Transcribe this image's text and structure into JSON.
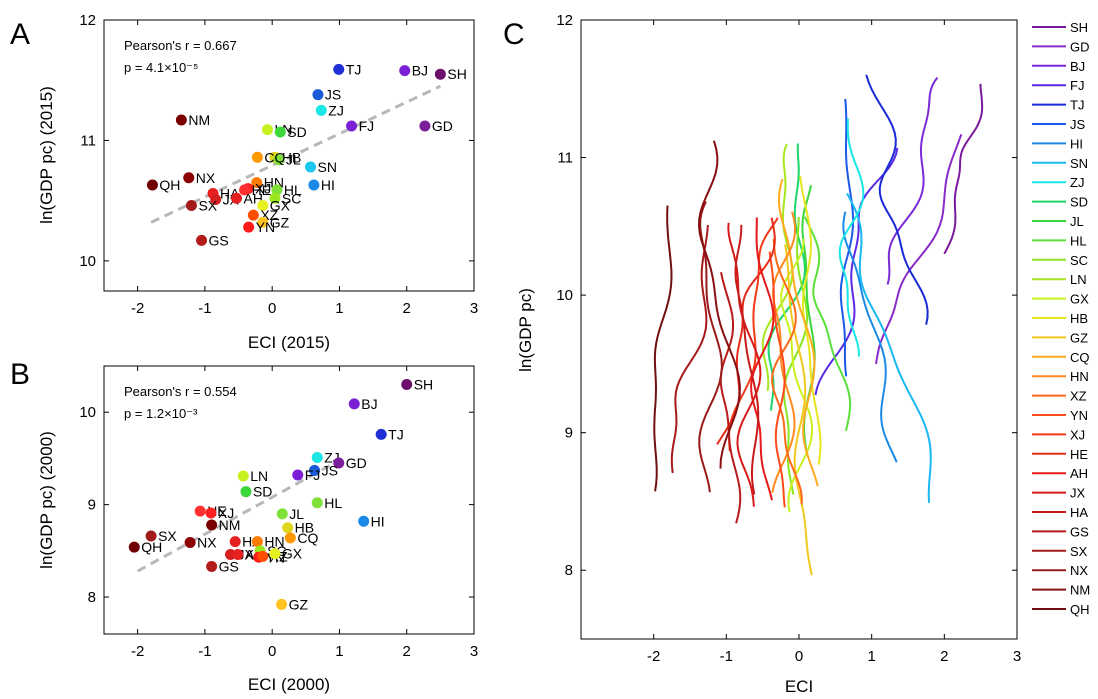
{
  "chart_data": [
    {
      "panel": "A",
      "type": "scatter",
      "xlabel": "ECI (2015)",
      "ylabel": "ln(GDP pc) (2015)",
      "xlim": [
        -2.5,
        3
      ],
      "ylim": [
        9.75,
        12
      ],
      "xticks": [
        -2,
        -1,
        0,
        1,
        2,
        3
      ],
      "yticks": [
        10,
        11,
        12
      ],
      "stat_line1": "Pearson's r = 0.667",
      "stat_line2": "p = 4.1×10⁻⁵",
      "fit": [
        [
          -1.8,
          10.32
        ],
        [
          2.5,
          11.45
        ]
      ],
      "points": [
        {
          "label": "SH",
          "x": 2.5,
          "y": 11.55,
          "color": "#6b0f6b"
        },
        {
          "label": "BJ",
          "x": 1.97,
          "y": 11.58,
          "color": "#7a1fd6"
        },
        {
          "label": "TJ",
          "x": 0.99,
          "y": 11.59,
          "color": "#1f2fd6"
        },
        {
          "label": "JS",
          "x": 0.68,
          "y": 11.38,
          "color": "#1a5ad6"
        },
        {
          "label": "ZJ",
          "x": 0.73,
          "y": 11.25,
          "color": "#1ae6e6"
        },
        {
          "label": "FJ",
          "x": 1.18,
          "y": 11.12,
          "color": "#7a1fd6"
        },
        {
          "label": "GD",
          "x": 2.27,
          "y": 11.12,
          "color": "#7a1f99"
        },
        {
          "label": "NM",
          "x": -1.35,
          "y": 11.17,
          "color": "#7a0000"
        },
        {
          "label": "LN",
          "x": -0.07,
          "y": 11.09,
          "color": "#c8f21f"
        },
        {
          "label": "SD",
          "x": 0.12,
          "y": 11.07,
          "color": "#3ad63a"
        },
        {
          "label": "HB",
          "x": 0.04,
          "y": 10.86,
          "color": "#e0d61f"
        },
        {
          "label": "JL",
          "x": 0.1,
          "y": 10.84,
          "color": "#7fe03a"
        },
        {
          "label": "CQ",
          "x": -0.22,
          "y": 10.86,
          "color": "#ff9900"
        },
        {
          "label": "SN",
          "x": 0.57,
          "y": 10.78,
          "color": "#1ac8f2"
        },
        {
          "label": "NX",
          "x": -1.24,
          "y": 10.69,
          "color": "#8b0000"
        },
        {
          "label": "QH",
          "x": -1.78,
          "y": 10.63,
          "color": "#700000"
        },
        {
          "label": "HN",
          "x": -0.23,
          "y": 10.65,
          "color": "#ff7a00"
        },
        {
          "label": "HI",
          "x": 0.62,
          "y": 10.63,
          "color": "#1a8ae6"
        },
        {
          "label": "HA",
          "x": -0.88,
          "y": 10.56,
          "color": "#e62020"
        },
        {
          "label": "JX",
          "x": -0.84,
          "y": 10.51,
          "color": "#d62020"
        },
        {
          "label": "SX",
          "x": -1.2,
          "y": 10.46,
          "color": "#a31a1a"
        },
        {
          "label": "AH",
          "x": -0.53,
          "y": 10.52,
          "color": "#e62020"
        },
        {
          "label": "XJ",
          "x": -0.36,
          "y": 10.6,
          "color": "#ff2020"
        },
        {
          "label": "HE",
          "x": -0.41,
          "y": 10.59,
          "color": "#ff3030"
        },
        {
          "label": "HL",
          "x": 0.07,
          "y": 10.59,
          "color": "#7fe03a"
        },
        {
          "label": "SC",
          "x": 0.04,
          "y": 10.52,
          "color": "#9ae61f"
        },
        {
          "label": "GX",
          "x": -0.14,
          "y": 10.46,
          "color": "#e6f21f"
        },
        {
          "label": "XZ",
          "x": -0.28,
          "y": 10.38,
          "color": "#ff4d00"
        },
        {
          "label": "GZ",
          "x": -0.14,
          "y": 10.32,
          "color": "#ffc21f"
        },
        {
          "label": "YN",
          "x": -0.35,
          "y": 10.28,
          "color": "#ff1a1a"
        },
        {
          "label": "GS",
          "x": -1.05,
          "y": 10.17,
          "color": "#b31a1a"
        }
      ]
    },
    {
      "panel": "B",
      "type": "scatter",
      "xlabel": "ECI (2000)",
      "ylabel": "ln(GDP pc) (2000)",
      "xlim": [
        -2.5,
        3
      ],
      "ylim": [
        7.6,
        10.5
      ],
      "xticks": [
        -2,
        -1,
        0,
        1,
        2,
        3
      ],
      "yticks": [
        8,
        9,
        10
      ],
      "stat_line1": "Pearson's r = 0.554",
      "stat_line2": "p = 1.2×10⁻³",
      "fit": [
        [
          -2.0,
          8.28
        ],
        [
          0.9,
          9.44
        ]
      ],
      "points": [
        {
          "label": "SH",
          "x": 2.0,
          "y": 10.3,
          "color": "#6b0f6b"
        },
        {
          "label": "BJ",
          "x": 1.22,
          "y": 10.09,
          "color": "#7a1fd6"
        },
        {
          "label": "TJ",
          "x": 1.62,
          "y": 9.76,
          "color": "#1f2fd6"
        },
        {
          "label": "ZJ",
          "x": 0.67,
          "y": 9.51,
          "color": "#1ae6e6"
        },
        {
          "label": "GD",
          "x": 0.99,
          "y": 9.45,
          "color": "#7a1f99"
        },
        {
          "label": "JS",
          "x": 0.63,
          "y": 9.37,
          "color": "#1a5ad6"
        },
        {
          "label": "FJ",
          "x": 0.38,
          "y": 9.32,
          "color": "#7a1fd6"
        },
        {
          "label": "LN",
          "x": -0.43,
          "y": 9.31,
          "color": "#c8f21f"
        },
        {
          "label": "SD",
          "x": -0.39,
          "y": 9.14,
          "color": "#3ad63a"
        },
        {
          "label": "HL",
          "x": 0.67,
          "y": 9.02,
          "color": "#7fe03a"
        },
        {
          "label": "HI",
          "x": 1.36,
          "y": 8.82,
          "color": "#1a8ae6"
        },
        {
          "label": "JL",
          "x": 0.15,
          "y": 8.9,
          "color": "#7fe03a"
        },
        {
          "label": "HB",
          "x": 0.23,
          "y": 8.75,
          "color": "#e0d61f"
        },
        {
          "label": "CQ",
          "x": 0.27,
          "y": 8.64,
          "color": "#ff9900"
        },
        {
          "label": "HE",
          "x": -1.07,
          "y": 8.93,
          "color": "#ff3030"
        },
        {
          "label": "XJ",
          "x": -0.91,
          "y": 8.91,
          "color": "#ff2020"
        },
        {
          "label": "SX",
          "x": -1.8,
          "y": 8.66,
          "color": "#a31a1a"
        },
        {
          "label": "NM",
          "x": -0.9,
          "y": 8.78,
          "color": "#7a0000"
        },
        {
          "label": "NX",
          "x": -1.22,
          "y": 8.59,
          "color": "#8b0000"
        },
        {
          "label": "QH",
          "x": -2.05,
          "y": 8.54,
          "color": "#700000"
        },
        {
          "label": "HA",
          "x": -0.55,
          "y": 8.6,
          "color": "#e62020"
        },
        {
          "label": "HN",
          "x": -0.22,
          "y": 8.6,
          "color": "#ff7a00"
        },
        {
          "label": "JX",
          "x": -0.62,
          "y": 8.46,
          "color": "#d62020"
        },
        {
          "label": "AH",
          "x": -0.51,
          "y": 8.46,
          "color": "#e62020"
        },
        {
          "label": "SC",
          "x": -0.18,
          "y": 8.5,
          "color": "#9ae61f"
        },
        {
          "label": "YN",
          "x": -0.2,
          "y": 8.43,
          "color": "#ff1a1a"
        },
        {
          "label": "XZ",
          "x": -0.14,
          "y": 8.44,
          "color": "#ff4d00"
        },
        {
          "label": "GX",
          "x": 0.04,
          "y": 8.47,
          "color": "#e6f21f"
        },
        {
          "label": "GS",
          "x": -0.9,
          "y": 8.33,
          "color": "#b31a1a"
        },
        {
          "label": "GZ",
          "x": 0.14,
          "y": 7.92,
          "color": "#ffc21f"
        }
      ]
    },
    {
      "panel": "C",
      "type": "line",
      "xlabel": "ECI",
      "ylabel": "ln(GDP pc)",
      "xlim": [
        -3,
        3
      ],
      "ylim": [
        7.5,
        12
      ],
      "xticks": [
        -2,
        -1,
        0,
        1,
        2,
        3
      ],
      "yticks": [
        8,
        9,
        10,
        11,
        12
      ],
      "legend_position": "right",
      "series": [
        {
          "name": "SH",
          "color": "#7a1a9a",
          "start": [
            2.0,
            10.3
          ],
          "end": [
            2.5,
            11.55
          ]
        },
        {
          "name": "GD",
          "color": "#8a2ac8",
          "start": [
            0.99,
            9.45
          ],
          "end": [
            2.27,
            11.12
          ]
        },
        {
          "name": "BJ",
          "color": "#7a2ad6",
          "start": [
            1.22,
            10.09
          ],
          "end": [
            1.97,
            11.58
          ]
        },
        {
          "name": "FJ",
          "color": "#5a2ae6",
          "start": [
            0.38,
            9.32
          ],
          "end": [
            1.18,
            11.12
          ]
        },
        {
          "name": "TJ",
          "color": "#1a2ad6",
          "start": [
            1.62,
            9.76
          ],
          "end": [
            0.99,
            11.59
          ]
        },
        {
          "name": "JS",
          "color": "#1a5ae6",
          "start": [
            0.63,
            9.37
          ],
          "end": [
            0.68,
            11.38
          ]
        },
        {
          "name": "HI",
          "color": "#1a8ae6",
          "start": [
            1.36,
            8.82
          ],
          "end": [
            0.62,
            10.63
          ]
        },
        {
          "name": "SN",
          "color": "#1ab8f2",
          "start": [
            1.9,
            8.52
          ],
          "end": [
            0.57,
            10.78
          ]
        },
        {
          "name": "ZJ",
          "color": "#1ae6e6",
          "start": [
            0.67,
            9.51
          ],
          "end": [
            0.73,
            11.25
          ]
        },
        {
          "name": "SD",
          "color": "#1ad66a",
          "start": [
            -0.39,
            9.14
          ],
          "end": [
            0.12,
            11.07
          ]
        },
        {
          "name": "JL",
          "color": "#3ad63a",
          "start": [
            0.15,
            8.9
          ],
          "end": [
            0.1,
            10.84
          ]
        },
        {
          "name": "HL",
          "color": "#5ae03a",
          "start": [
            0.67,
            9.02
          ],
          "end": [
            0.07,
            10.59
          ]
        },
        {
          "name": "SC",
          "color": "#8ae61f",
          "start": [
            -0.18,
            8.5
          ],
          "end": [
            0.04,
            10.52
          ]
        },
        {
          "name": "LN",
          "color": "#a8e61f",
          "start": [
            -0.43,
            9.31
          ],
          "end": [
            -0.07,
            11.09
          ]
        },
        {
          "name": "GX",
          "color": "#c8f21f",
          "start": [
            0.04,
            8.47
          ],
          "end": [
            -0.14,
            10.46
          ]
        },
        {
          "name": "HB",
          "color": "#e6e61f",
          "start": [
            0.23,
            8.75
          ],
          "end": [
            0.04,
            10.86
          ]
        },
        {
          "name": "GZ",
          "color": "#f2c81f",
          "start": [
            0.14,
            7.92
          ],
          "end": [
            -0.14,
            10.32
          ]
        },
        {
          "name": "CQ",
          "color": "#ffaa1f",
          "start": [
            0.27,
            8.64
          ],
          "end": [
            -0.22,
            10.86
          ]
        },
        {
          "name": "HN",
          "color": "#ff8a1f",
          "start": [
            -0.22,
            8.6
          ],
          "end": [
            -0.23,
            10.65
          ]
        },
        {
          "name": "XZ",
          "color": "#ff6a1a",
          "start": [
            -0.14,
            8.44
          ],
          "end": [
            -0.28,
            10.38
          ]
        },
        {
          "name": "YN",
          "color": "#ff4a1a",
          "start": [
            -0.2,
            8.43
          ],
          "end": [
            -0.35,
            10.28
          ]
        },
        {
          "name": "XJ",
          "color": "#f23a1a",
          "start": [
            -0.91,
            8.91
          ],
          "end": [
            -0.36,
            10.6
          ]
        },
        {
          "name": "HE",
          "color": "#e62a1a",
          "start": [
            -1.07,
            8.93
          ],
          "end": [
            -0.41,
            10.59
          ]
        },
        {
          "name": "AH",
          "color": "#e61a1a",
          "start": [
            -0.51,
            8.46
          ],
          "end": [
            -0.53,
            10.52
          ]
        },
        {
          "name": "JX",
          "color": "#d61a1a",
          "start": [
            -0.62,
            8.46
          ],
          "end": [
            -0.84,
            10.51
          ]
        },
        {
          "name": "HA",
          "color": "#c81a1a",
          "start": [
            -0.55,
            8.6
          ],
          "end": [
            -0.88,
            10.56
          ]
        },
        {
          "name": "GS",
          "color": "#b81a1a",
          "start": [
            -0.9,
            8.33
          ],
          "end": [
            -1.05,
            10.17
          ]
        },
        {
          "name": "SX",
          "color": "#a81a1a",
          "start": [
            -1.8,
            8.66
          ],
          "end": [
            -1.2,
            10.46
          ]
        },
        {
          "name": "NX",
          "color": "#981a1a",
          "start": [
            -1.22,
            8.59
          ],
          "end": [
            -1.24,
            10.69
          ]
        },
        {
          "name": "NM",
          "color": "#881010",
          "start": [
            -0.9,
            8.78
          ],
          "end": [
            -1.35,
            11.17
          ]
        },
        {
          "name": "QH",
          "color": "#701010",
          "start": [
            -2.05,
            8.54
          ],
          "end": [
            -1.78,
            10.63
          ]
        }
      ]
    }
  ]
}
